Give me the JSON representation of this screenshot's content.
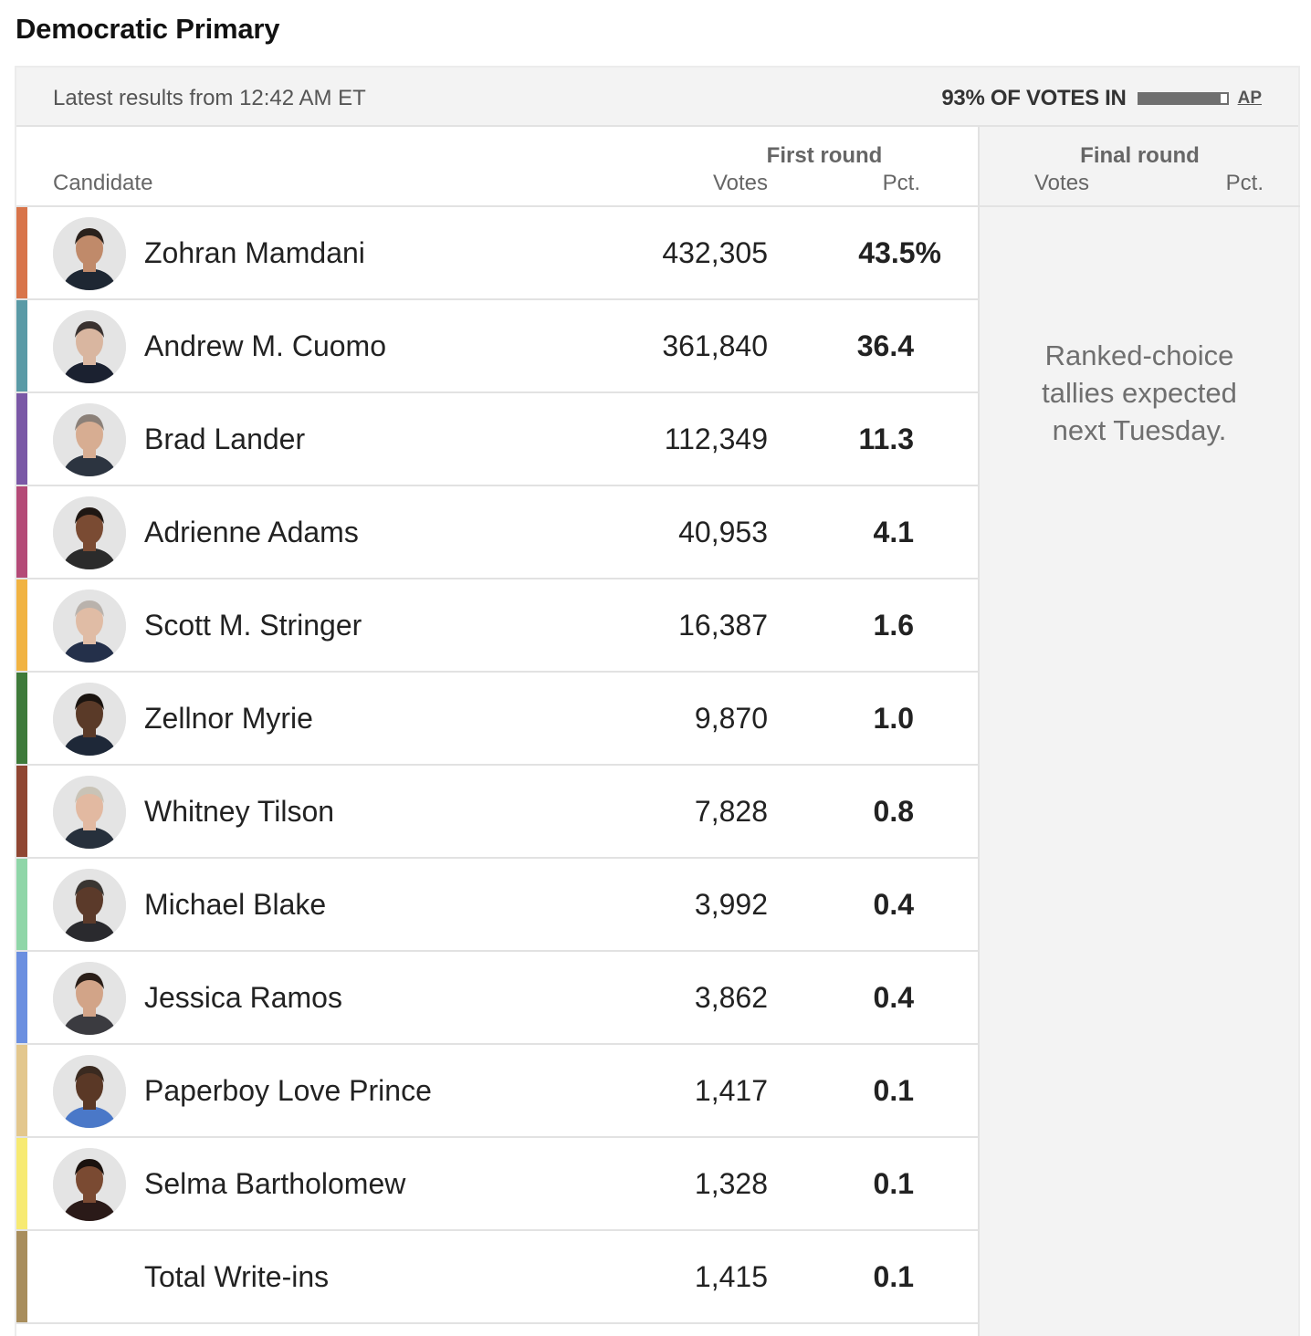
{
  "page_title": "Democratic Primary",
  "status": {
    "updated": "Latest results from 12:42 AM ET",
    "reporting": "93% OF VOTES IN",
    "reporting_fraction": 0.93,
    "source": "AP"
  },
  "table": {
    "candidate_header": "Candidate",
    "first_round": {
      "label": "First round",
      "votes_header": "Votes",
      "pct_header": "Pct."
    },
    "final_round": {
      "label": "Final round",
      "votes_header": "Votes",
      "pct_header": "Pct.",
      "note": "Ranked-choice tallies expected next Tuesday."
    }
  },
  "candidates": [
    {
      "name": "Zohran Mamdani",
      "votes": "432,305",
      "pct": "43.5%",
      "color": "#d8744a",
      "photo": "portrait-icon",
      "skin": "#c08a6a",
      "hair": "#2a211c",
      "shirt": "#1e2733"
    },
    {
      "name": "Andrew M. Cuomo",
      "votes": "361,840",
      "pct": "36.4",
      "color": "#5a9aa6",
      "photo": "portrait-icon",
      "skin": "#d9b6a0",
      "hair": "#3a3230",
      "shirt": "#1b2130"
    },
    {
      "name": "Brad Lander",
      "votes": "112,349",
      "pct": "11.3",
      "color": "#7a58a6",
      "photo": "portrait-icon",
      "skin": "#d7ad92",
      "hair": "#8b8078",
      "shirt": "#2c3440"
    },
    {
      "name": "Adrienne Adams",
      "votes": "40,953",
      "pct": "4.1",
      "color": "#b44a77",
      "photo": "portrait-icon",
      "skin": "#7a4b33",
      "hair": "#1f1713",
      "shirt": "#2b2b2b"
    },
    {
      "name": "Scott M. Stringer",
      "votes": "16,387",
      "pct": "1.6",
      "color": "#f1b342",
      "photo": "portrait-icon",
      "skin": "#e0bca5",
      "hair": "#b9b2ac",
      "shirt": "#24304a"
    },
    {
      "name": "Zellnor Myrie",
      "votes": "9,870",
      "pct": "1.0",
      "color": "#3e7a3a",
      "photo": "portrait-icon",
      "skin": "#5a3a28",
      "hair": "#1a1410",
      "shirt": "#1e2838"
    },
    {
      "name": "Whitney Tilson",
      "votes": "7,828",
      "pct": "0.8",
      "color": "#8f4632",
      "photo": "portrait-icon",
      "skin": "#e2b9a1",
      "hair": "#c9c3b6",
      "shirt": "#27303c"
    },
    {
      "name": "Michael Blake",
      "votes": "3,992",
      "pct": "0.4",
      "color": "#8fd6a8",
      "photo": "portrait-icon",
      "skin": "#5b3a2a",
      "hair": "#3a3632",
      "shirt": "#2a2a2e"
    },
    {
      "name": "Jessica Ramos",
      "votes": "3,862",
      "pct": "0.4",
      "color": "#6b8fe0",
      "photo": "portrait-icon",
      "skin": "#d2a488",
      "hair": "#2a1e18",
      "shirt": "#3b3b40"
    },
    {
      "name": "Paperboy Love Prince",
      "votes": "1,417",
      "pct": "0.1",
      "color": "#e3c78d",
      "photo": "portrait-icon",
      "skin": "#5a3826",
      "hair": "#3a2a20",
      "shirt": "#4a78c8"
    },
    {
      "name": "Selma Bartholomew",
      "votes": "1,328",
      "pct": "0.1",
      "color": "#f7ea72",
      "photo": "portrait-icon",
      "skin": "#7a4a32",
      "hair": "#1a120e",
      "shirt": "#2a1a18"
    },
    {
      "name": "Total Write-ins",
      "votes": "1,415",
      "pct": "0.1",
      "color": "#a88d5c",
      "photo": "",
      "skin": "",
      "hair": "",
      "shirt": ""
    }
  ]
}
